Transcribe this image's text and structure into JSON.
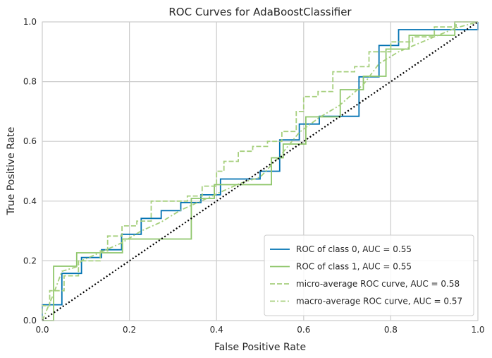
{
  "chart_data": {
    "type": "line",
    "title": "ROC Curves for AdaBoostClassifier",
    "xlabel": "False Positive Rate",
    "ylabel": "True Positive Rate",
    "xlim": [
      0,
      1
    ],
    "ylim": [
      0,
      1
    ],
    "grid": true,
    "legend_position": "bottom-right",
    "x_ticks": [
      "0.0",
      "0.2",
      "0.4",
      "0.6",
      "0.8",
      "1.0"
    ],
    "y_ticks": [
      "0.0",
      "0.2",
      "0.4",
      "0.6",
      "0.8",
      "1.0"
    ],
    "series": [
      {
        "name": "ROC of class 0, AUC = 0.55",
        "color": "#0072b2",
        "style": "solid",
        "x": [
          0.0,
          0.0,
          0.045,
          0.045,
          0.09,
          0.09,
          0.136,
          0.136,
          0.182,
          0.182,
          0.227,
          0.227,
          0.273,
          0.273,
          0.318,
          0.318,
          0.364,
          0.364,
          0.409,
          0.409,
          0.455,
          0.455,
          0.5,
          0.5,
          0.545,
          0.545,
          0.59,
          0.59,
          0.636,
          0.636,
          0.682,
          0.682,
          0.727,
          0.727,
          0.773,
          0.773,
          0.818,
          0.818,
          1.0,
          1.0
        ],
        "y": [
          0.0,
          0.053,
          0.053,
          0.158,
          0.158,
          0.211,
          0.211,
          0.237,
          0.237,
          0.289,
          0.289,
          0.342,
          0.342,
          0.368,
          0.368,
          0.395,
          0.395,
          0.421,
          0.421,
          0.474,
          0.474,
          0.474,
          0.474,
          0.5,
          0.5,
          0.605,
          0.605,
          0.658,
          0.658,
          0.684,
          0.684,
          0.684,
          0.684,
          0.816,
          0.816,
          0.921,
          0.921,
          0.974,
          0.974,
          1.0
        ]
      },
      {
        "name": "ROC of class 1, AUC = 0.55",
        "color": "#8fc66b",
        "style": "solid",
        "x": [
          0.0,
          0.0,
          0.026,
          0.026,
          0.079,
          0.079,
          0.184,
          0.184,
          0.316,
          0.316,
          0.342,
          0.342,
          0.395,
          0.395,
          0.5,
          0.5,
          0.526,
          0.526,
          0.553,
          0.553,
          0.579,
          0.579,
          0.605,
          0.605,
          0.684,
          0.684,
          0.737,
          0.737,
          0.789,
          0.789,
          0.842,
          0.842,
          0.947,
          0.947,
          1.0,
          1.0
        ],
        "y": [
          0.0,
          0.0,
          0.0,
          0.182,
          0.182,
          0.227,
          0.227,
          0.273,
          0.273,
          0.273,
          0.273,
          0.409,
          0.409,
          0.455,
          0.455,
          0.455,
          0.455,
          0.545,
          0.545,
          0.591,
          0.591,
          0.591,
          0.591,
          0.682,
          0.682,
          0.773,
          0.773,
          0.818,
          0.818,
          0.909,
          0.909,
          0.955,
          0.955,
          1.0,
          1.0,
          1.0
        ]
      },
      {
        "name": "micro-average ROC curve, AUC = 0.58",
        "color": "#a6cf7d",
        "style": "dashed",
        "x": [
          0.0,
          0.0,
          0.017,
          0.017,
          0.05,
          0.05,
          0.083,
          0.083,
          0.133,
          0.133,
          0.15,
          0.15,
          0.183,
          0.183,
          0.217,
          0.217,
          0.25,
          0.25,
          0.3,
          0.3,
          0.333,
          0.333,
          0.367,
          0.367,
          0.4,
          0.4,
          0.417,
          0.417,
          0.45,
          0.45,
          0.483,
          0.483,
          0.517,
          0.517,
          0.55,
          0.55,
          0.583,
          0.583,
          0.6,
          0.6,
          0.633,
          0.633,
          0.667,
          0.667,
          0.717,
          0.717,
          0.75,
          0.75,
          0.8,
          0.8,
          0.85,
          0.85,
          0.9,
          0.9,
          0.95,
          0.95,
          1.0
        ],
        "y": [
          0.0,
          0.05,
          0.05,
          0.1,
          0.1,
          0.15,
          0.15,
          0.2,
          0.2,
          0.233,
          0.233,
          0.283,
          0.283,
          0.317,
          0.317,
          0.333,
          0.333,
          0.4,
          0.4,
          0.4,
          0.4,
          0.417,
          0.417,
          0.45,
          0.45,
          0.5,
          0.5,
          0.533,
          0.533,
          0.567,
          0.567,
          0.583,
          0.583,
          0.6,
          0.6,
          0.633,
          0.633,
          0.7,
          0.7,
          0.75,
          0.75,
          0.767,
          0.767,
          0.833,
          0.833,
          0.85,
          0.85,
          0.9,
          0.9,
          0.933,
          0.933,
          0.95,
          0.95,
          0.983,
          0.983,
          1.0,
          1.0
        ]
      },
      {
        "name": "macro-average ROC curve, AUC = 0.57",
        "color": "#a6cf7d",
        "style": "dashdot",
        "x": [
          0.0,
          0.026,
          0.045,
          0.079,
          0.09,
          0.136,
          0.182,
          0.227,
          0.273,
          0.318,
          0.364,
          0.409,
          0.455,
          0.5,
          0.545,
          0.59,
          0.636,
          0.682,
          0.737,
          0.773,
          0.818,
          0.9,
          0.95,
          1.0
        ],
        "y": [
          0.0,
          0.09,
          0.165,
          0.18,
          0.2,
          0.23,
          0.26,
          0.3,
          0.33,
          0.37,
          0.4,
          0.43,
          0.46,
          0.48,
          0.55,
          0.63,
          0.68,
          0.72,
          0.79,
          0.86,
          0.9,
          0.95,
          0.98,
          1.0
        ]
      },
      {
        "name": "",
        "color": "#000000",
        "style": "dotted",
        "x": [
          0,
          1
        ],
        "y": [
          0,
          1
        ]
      }
    ]
  }
}
